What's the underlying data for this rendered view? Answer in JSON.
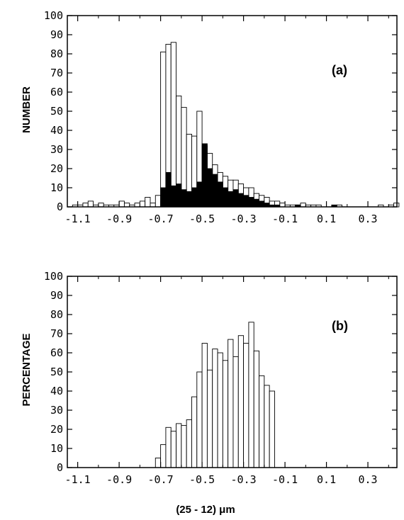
{
  "chart_data": [
    {
      "type": "bar",
      "panel_label": "(a)",
      "ylabel": "NUMBER",
      "ylim": [
        0,
        100
      ],
      "xlim": [
        -1.15,
        0.44
      ],
      "yticks": [
        "0",
        "10",
        "20",
        "30",
        "40",
        "50",
        "60",
        "70",
        "80",
        "90",
        "100"
      ],
      "xticks": [
        "-1.1",
        "-0.9",
        "-0.7",
        "-0.5",
        "-0.3",
        "-0.1",
        "0.1",
        "0.3"
      ],
      "xtick_values": [
        -1.1,
        -0.9,
        -0.7,
        -0.5,
        -0.3,
        -0.1,
        0.1,
        0.3
      ],
      "bin_width": 0.025,
      "bin_lefts": [
        -1.125,
        -1.1,
        -1.075,
        -1.05,
        -1.025,
        -1.0,
        -0.975,
        -0.95,
        -0.925,
        -0.9,
        -0.875,
        -0.85,
        -0.825,
        -0.8,
        -0.775,
        -0.75,
        -0.725,
        -0.7,
        -0.675,
        -0.65,
        -0.625,
        -0.6,
        -0.575,
        -0.55,
        -0.525,
        -0.5,
        -0.475,
        -0.45,
        -0.425,
        -0.4,
        -0.375,
        -0.35,
        -0.325,
        -0.3,
        -0.275,
        -0.25,
        -0.225,
        -0.2,
        -0.175,
        -0.15,
        -0.125,
        -0.1,
        -0.075,
        -0.05,
        -0.025,
        0.0,
        0.025,
        0.05,
        0.075,
        0.1,
        0.125,
        0.15,
        0.175,
        0.2,
        0.225,
        0.25,
        0.275,
        0.3,
        0.325,
        0.35,
        0.375,
        0.4,
        0.425
      ],
      "series": [
        {
          "values": [
            1,
            1,
            2,
            3,
            1,
            2,
            1,
            1,
            1,
            3,
            2,
            1,
            2,
            3,
            5,
            2,
            6,
            81,
            85,
            86,
            58,
            52,
            38,
            37,
            50,
            32,
            28,
            22,
            18,
            16,
            14,
            14,
            12,
            10,
            10,
            7,
            6,
            5,
            3,
            3,
            2,
            1,
            1,
            1,
            2,
            1,
            1,
            1,
            0,
            0,
            0,
            1,
            0,
            0,
            0,
            0,
            0,
            0,
            0,
            1,
            0,
            1,
            2
          ]
        },
        {
          "values": [
            0,
            0,
            0,
            0,
            0,
            0,
            0,
            0,
            0,
            0,
            0,
            0,
            0,
            0,
            0,
            0,
            0,
            10,
            18,
            11,
            12,
            9,
            8,
            10,
            13,
            33,
            20,
            17,
            13,
            10,
            8,
            9,
            7,
            6,
            5,
            4,
            3,
            2,
            1,
            1,
            0,
            0,
            0,
            1,
            0,
            0,
            0,
            0,
            0,
            0,
            1,
            0,
            0,
            0,
            0,
            0,
            0,
            0,
            0,
            0,
            0,
            0,
            0
          ]
        }
      ],
      "colors": {
        "outline": "#000000",
        "fill_total": "#ffffff",
        "fill_subset": "#000000"
      }
    },
    {
      "type": "bar",
      "panel_label": "(b)",
      "ylabel": "PERCENTAGE",
      "xlabel": "(25 - 12) μm",
      "ylim": [
        0,
        100
      ],
      "xlim": [
        -1.15,
        0.44
      ],
      "yticks": [
        "0",
        "10",
        "20",
        "30",
        "40",
        "50",
        "60",
        "70",
        "80",
        "90",
        "100"
      ],
      "xticks": [
        "-1.1",
        "-0.9",
        "-0.7",
        "-0.5",
        "-0.3",
        "-0.1",
        "0.1",
        "0.3"
      ],
      "xtick_values": [
        -1.1,
        -0.9,
        -0.7,
        -0.5,
        -0.3,
        -0.1,
        0.1,
        0.3
      ],
      "bin_width": 0.025,
      "bin_lefts": [
        -0.725,
        -0.7,
        -0.675,
        -0.65,
        -0.625,
        -0.6,
        -0.575,
        -0.55,
        -0.525,
        -0.5,
        -0.475,
        -0.45,
        -0.425,
        -0.4,
        -0.375,
        -0.35,
        -0.325,
        -0.3,
        -0.275,
        -0.25,
        -0.225,
        -0.2,
        -0.175
      ],
      "series": [
        {
          "values": [
            5,
            12,
            21,
            19,
            23,
            22,
            25,
            37,
            50,
            65,
            51,
            62,
            60,
            56,
            67,
            58,
            69,
            65,
            76,
            61,
            48,
            43,
            40
          ]
        }
      ],
      "colors": {
        "outline": "#000000",
        "fill_total": "#ffffff"
      }
    }
  ]
}
